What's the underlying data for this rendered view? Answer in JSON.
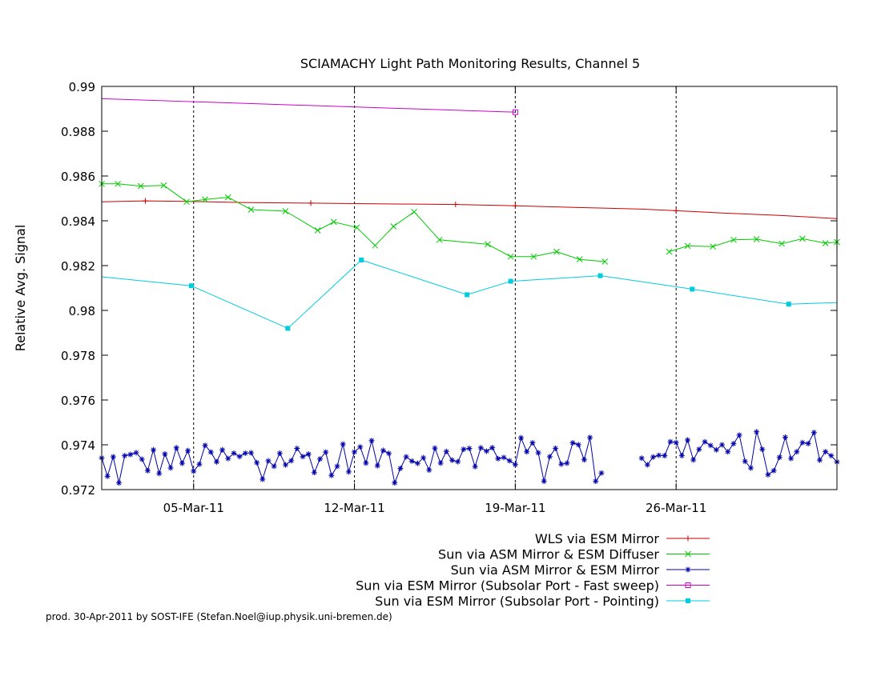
{
  "chart_data": {
    "type": "line",
    "title": "SCIAMACHY Light Path Monitoring Results, Channel 5",
    "ylabel": "Relative Avg. Signal",
    "xlabel": "",
    "x_unit": "day of March 2011",
    "xlim": [
      1.5,
      33.5
    ],
    "ylim": [
      0.972,
      0.99
    ],
    "yticks": [
      0.972,
      0.974,
      0.976,
      0.978,
      0.98,
      0.982,
      0.984,
      0.986,
      0.988,
      0.99
    ],
    "ytick_labels": [
      "0.972",
      "0.974",
      "0.976",
      "0.978",
      "0.98",
      "0.982",
      "0.984",
      "0.986",
      "0.988",
      "0.99"
    ],
    "xticks": [
      5.5,
      12.5,
      19.5,
      26.5
    ],
    "xtick_labels": [
      "05-Mar-11",
      "12-Mar-11",
      "19-Mar-11",
      "26-Mar-11"
    ],
    "grid": "dashed at x ticks",
    "legend_position": "below plot, right-aligned",
    "series": [
      {
        "name": "WLS via ESM Mirror",
        "color": "#cc0000",
        "marker": "plus",
        "x": [
          1.5,
          3.4,
          5.5,
          7.9,
          10.6,
          13.4,
          16.9,
          19.5,
          22.4,
          25.0,
          26.5,
          28.5,
          31.0,
          33.5
        ],
        "y": [
          0.98485,
          0.98489,
          0.98486,
          0.98481,
          0.98479,
          0.98476,
          0.98473,
          0.98467,
          0.98459,
          0.98452,
          0.98445,
          0.98435,
          0.98424,
          0.9841
        ],
        "markers_at": [
          3.4,
          10.6,
          16.9,
          19.5,
          26.5
        ],
        "segments": [
          [
            0,
            13
          ]
        ]
      },
      {
        "name": "Sun via ASM Mirror & ESM Diffuser",
        "color": "#00cc00",
        "marker": "cross",
        "x": [
          1.5,
          2.2,
          3.2,
          4.2,
          5.2,
          6.0,
          7.0,
          8.0,
          9.5,
          10.9,
          11.6,
          12.6,
          13.4,
          14.2,
          15.1,
          16.2,
          18.3,
          19.3,
          20.3,
          21.3,
          22.3,
          23.4,
          26.2,
          27.0,
          28.1,
          29.0,
          30.0,
          31.1,
          32.0,
          33.0,
          33.5
        ],
        "y": [
          0.98565,
          0.98565,
          0.98555,
          0.98558,
          0.98485,
          0.98495,
          0.98505,
          0.9845,
          0.98443,
          0.98357,
          0.98395,
          0.9837,
          0.9829,
          0.98375,
          0.9844,
          0.98315,
          0.98295,
          0.9824,
          0.9824,
          0.98262,
          0.98228,
          0.98218,
          0.98262,
          0.98288,
          0.98285,
          0.98315,
          0.98318,
          0.98298,
          0.9832,
          0.983,
          0.98305
        ],
        "segments": [
          [
            0,
            21
          ],
          [
            22,
            30
          ]
        ]
      },
      {
        "name": "Sun via ASM Mirror & ESM Mirror",
        "color": "#0000aa",
        "marker": "star",
        "x_range": [
          1.5,
          33.5
        ],
        "y_mean": 0.9735,
        "y_range": [
          0.9723,
          0.9748
        ],
        "gap": [
          23.4,
          25.0
        ],
        "note": "dense noisy series, roughly 4 points per day"
      },
      {
        "name": "Sun via ESM Mirror (Subsolar Port - Fast sweep)",
        "color": "#cc00cc",
        "marker": "open-square",
        "x": [
          1.5,
          19.5
        ],
        "y": [
          0.98945,
          0.98885
        ],
        "markers_at": [
          19.5
        ],
        "segments": [
          [
            0,
            1
          ]
        ]
      },
      {
        "name": "Sun via ESM Mirror (Subsolar Port - Pointing)",
        "color": "#00ccdd",
        "marker": "filled-square",
        "x": [
          1.5,
          5.4,
          9.6,
          12.8,
          17.4,
          19.3,
          23.2,
          27.2,
          31.4,
          33.5
        ],
        "y": [
          0.9815,
          0.9811,
          0.9792,
          0.98225,
          0.9807,
          0.9813,
          0.98155,
          0.98095,
          0.98028,
          0.98035
        ],
        "markers_at": [
          5.4,
          9.6,
          12.8,
          17.4,
          19.3,
          23.2,
          27.2,
          31.4
        ],
        "segments": [
          [
            0,
            9
          ]
        ]
      }
    ],
    "footer": "prod. 30-Apr-2011 by SOST-IFE (Stefan.Noel@iup.physik.uni-bremen.de)"
  }
}
